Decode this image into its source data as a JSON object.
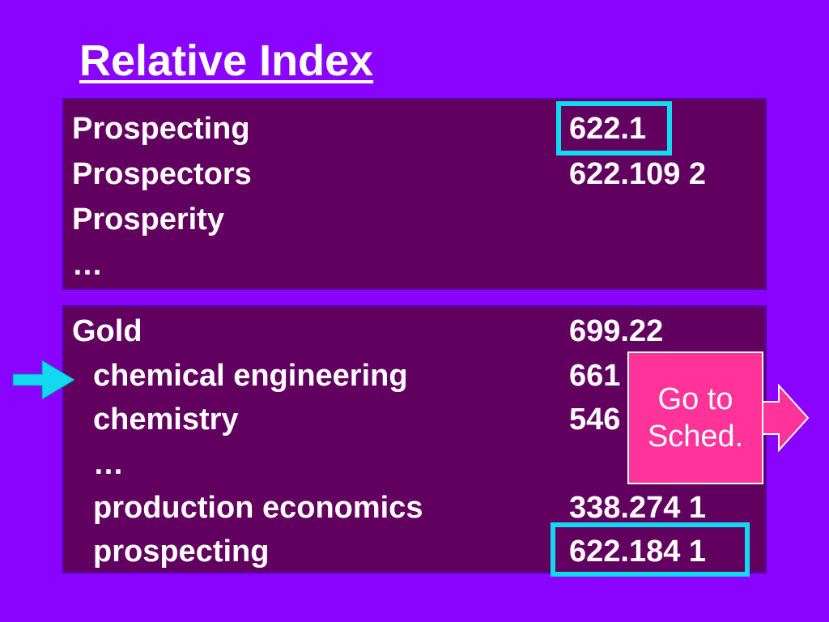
{
  "title": "Relative Index",
  "colors": {
    "background": "#8a02ff",
    "panel": "#62005f",
    "highlight": "#13d9f0",
    "button": "#ff3399",
    "pointer_arrow": "#13d9f0"
  },
  "panel1": {
    "rows": [
      {
        "term": "Prospecting",
        "number": "622.1"
      },
      {
        "term": "Prospectors",
        "number": "622.109 2"
      },
      {
        "term": "Prosperity",
        "number": ""
      },
      {
        "term": "…",
        "number": ""
      }
    ]
  },
  "panel2": {
    "rows": [
      {
        "term": "Gold",
        "number": "699.22"
      },
      {
        "term": "chemical engineering",
        "number": "661"
      },
      {
        "term": "chemistry",
        "number": "546"
      },
      {
        "term": "…",
        "number": ""
      },
      {
        "term": "production economics",
        "number": "338.274 1"
      },
      {
        "term": "prospecting",
        "number": "622.184 1"
      }
    ]
  },
  "goto_button": {
    "line1": "Go to",
    "line2": "Sched.",
    "icon": "right-arrow-icon"
  },
  "pointer_icon": "pointer-arrow-icon"
}
